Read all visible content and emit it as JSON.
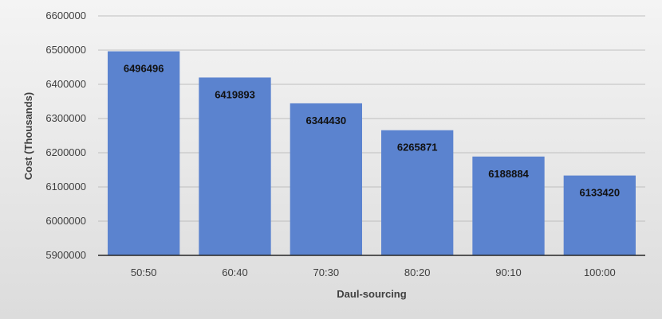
{
  "chart_data": {
    "type": "bar",
    "title": "",
    "xlabel": "Daul-sourcing",
    "ylabel": "Cost (Thousands)",
    "categories": [
      "50:50",
      "60:40",
      "70:30",
      "80:20",
      "90:10",
      "100:00"
    ],
    "values": [
      6496496,
      6419893,
      6344430,
      6265871,
      6188884,
      6133420
    ],
    "data_labels": [
      "6496496",
      "6419893",
      "6344430",
      "6265871",
      "6188884",
      "6133420"
    ],
    "ylim": [
      5900000,
      6600000
    ],
    "yticks": [
      5900000,
      6000000,
      6100000,
      6200000,
      6300000,
      6400000,
      6500000,
      6600000
    ],
    "ytick_labels": [
      "5900000",
      "6000000",
      "6100000",
      "6200000",
      "6300000",
      "6400000",
      "6500000",
      "6600000"
    ],
    "grid": true,
    "legend": "none",
    "colors": {
      "bar": "#5b83cf",
      "gridline": "#bfbfbf",
      "axis": "#262626"
    }
  }
}
